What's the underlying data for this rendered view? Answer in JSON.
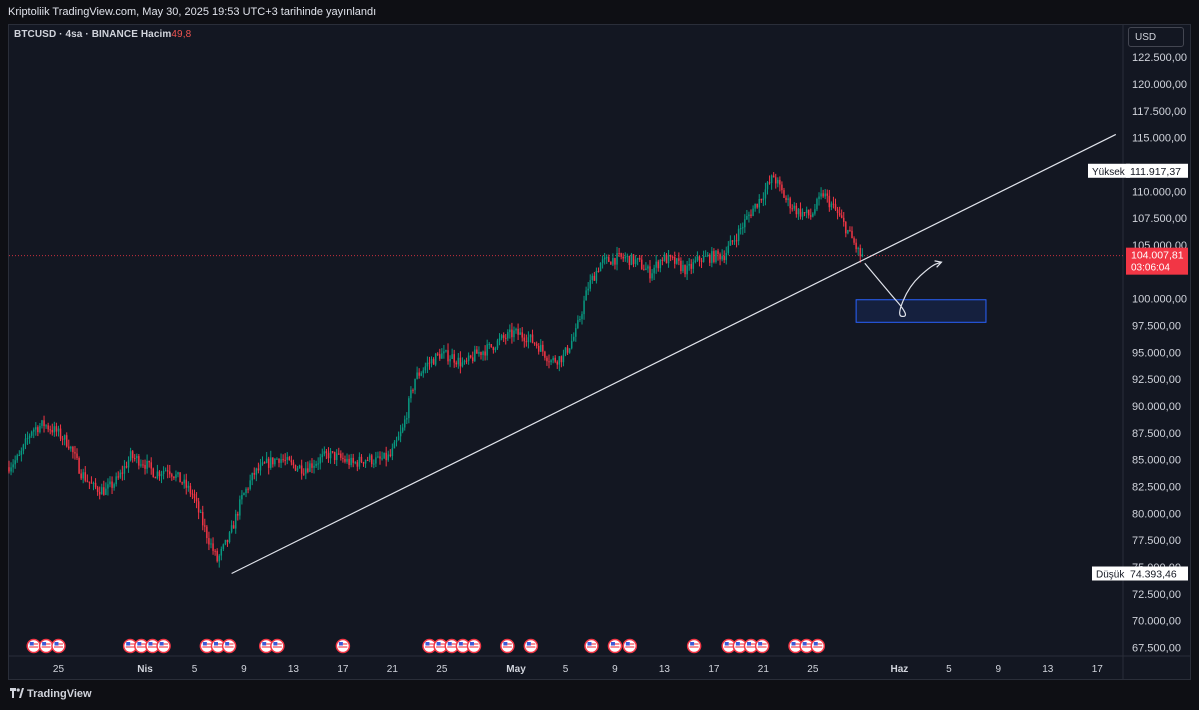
{
  "header": {
    "published_text": "Kriptoliik TradingView.com, May 30, 2025 19:53 UTC+3 tarihinde yayınlandı"
  },
  "legend": {
    "symbol": "BTCUSD",
    "sep1": "·",
    "interval": "4sa",
    "sep2": "·",
    "exchange": "BINANCE",
    "volume_label": "Hacim",
    "volume_value": "49,8"
  },
  "currency_button": "USD",
  "footer": {
    "brand": "TradingView"
  },
  "chart_data": {
    "type": "candlestick",
    "symbol": "BTCUSD",
    "interval": "4sa",
    "y_range": [
      66800,
      125500
    ],
    "y_ticks": [
      {
        "value": 122500,
        "label": "122.500,00"
      },
      {
        "value": 120000,
        "label": "120.000,00"
      },
      {
        "value": 117500,
        "label": "117.500,00"
      },
      {
        "value": 115000,
        "label": "115.000,00"
      },
      {
        "value": 110000,
        "label": "110.000,00"
      },
      {
        "value": 107500,
        "label": "107.500,00"
      },
      {
        "value": 105000,
        "label": "105.000,00"
      },
      {
        "value": 100000,
        "label": "100.000,00"
      },
      {
        "value": 97500,
        "label": "97.500,00"
      },
      {
        "value": 95000,
        "label": "95.000,00"
      },
      {
        "value": 92500,
        "label": "92.500,00"
      },
      {
        "value": 90000,
        "label": "90.000,00"
      },
      {
        "value": 87500,
        "label": "87.500,00"
      },
      {
        "value": 85000,
        "label": "85.000,00"
      },
      {
        "value": 82500,
        "label": "82.500,00"
      },
      {
        "value": 80000,
        "label": "80.000,00"
      },
      {
        "value": 77500,
        "label": "77.500,00"
      },
      {
        "value": 75000,
        "label": "75.000,00"
      },
      {
        "value": 72500,
        "label": "72.500,00"
      },
      {
        "value": 70000,
        "label": "70.000,00"
      },
      {
        "value": 67500,
        "label": "67.500,00"
      }
    ],
    "x_ticks": [
      {
        "day": 25,
        "label": "25"
      },
      {
        "day": 32,
        "label": "Nis",
        "bold": true
      },
      {
        "day": 36,
        "label": "5"
      },
      {
        "day": 40,
        "label": "9"
      },
      {
        "day": 44,
        "label": "13"
      },
      {
        "day": 48,
        "label": "17"
      },
      {
        "day": 52,
        "label": "21"
      },
      {
        "day": 56,
        "label": "25"
      },
      {
        "day": 62,
        "label": "May",
        "bold": true
      },
      {
        "day": 66,
        "label": "5"
      },
      {
        "day": 70,
        "label": "9"
      },
      {
        "day": 74,
        "label": "13"
      },
      {
        "day": 78,
        "label": "17"
      },
      {
        "day": 82,
        "label": "21"
      },
      {
        "day": 86,
        "label": "25"
      },
      {
        "day": 93,
        "label": "Haz",
        "bold": true
      },
      {
        "day": 97,
        "label": "5"
      },
      {
        "day": 101,
        "label": "9"
      },
      {
        "day": 105,
        "label": "13"
      },
      {
        "day": 109,
        "label": "17"
      }
    ],
    "price_path": [
      [
        21,
        84300
      ],
      [
        22,
        85200
      ],
      [
        23,
        87800
      ],
      [
        24,
        88300
      ],
      [
        25,
        87600
      ],
      [
        26,
        86500
      ],
      [
        27,
        83800
      ],
      [
        28,
        82400
      ],
      [
        29,
        82100
      ],
      [
        30,
        83200
      ],
      [
        31,
        85300
      ],
      [
        32,
        84800
      ],
      [
        33,
        83700
      ],
      [
        34,
        84200
      ],
      [
        35,
        83100
      ],
      [
        36,
        81800
      ],
      [
        37,
        78500
      ],
      [
        38,
        75600
      ],
      [
        39,
        77800
      ],
      [
        40,
        81400
      ],
      [
        41,
        83700
      ],
      [
        42,
        84600
      ],
      [
        43,
        85200
      ],
      [
        44,
        84500
      ],
      [
        45,
        84200
      ],
      [
        46,
        84800
      ],
      [
        47,
        85500
      ],
      [
        48,
        85100
      ],
      [
        49,
        84600
      ],
      [
        50,
        85100
      ],
      [
        51,
        84900
      ],
      [
        52,
        85300
      ],
      [
        53,
        87800
      ],
      [
        54,
        92600
      ],
      [
        55,
        93900
      ],
      [
        56,
        94800
      ],
      [
        57,
        94600
      ],
      [
        58,
        93800
      ],
      [
        59,
        94900
      ],
      [
        60,
        95400
      ],
      [
        61,
        96200
      ],
      [
        62,
        96800
      ],
      [
        63,
        96500
      ],
      [
        64,
        95600
      ],
      [
        65,
        94200
      ],
      [
        66,
        94600
      ],
      [
        67,
        96800
      ],
      [
        68,
        101100
      ],
      [
        69,
        103300
      ],
      [
        70,
        103700
      ],
      [
        71,
        103800
      ],
      [
        72,
        103400
      ],
      [
        73,
        102400
      ],
      [
        74,
        103800
      ],
      [
        75,
        103400
      ],
      [
        76,
        102600
      ],
      [
        77,
        103700
      ],
      [
        78,
        103900
      ],
      [
        79,
        104100
      ],
      [
        80,
        105900
      ],
      [
        81,
        107800
      ],
      [
        82,
        109500
      ],
      [
        83,
        111400
      ],
      [
        84,
        109200
      ],
      [
        85,
        108100
      ],
      [
        86,
        107700
      ],
      [
        87,
        109800
      ],
      [
        88,
        108200
      ],
      [
        89,
        106300
      ],
      [
        90,
        104000
      ]
    ],
    "trendline": {
      "start": [
        39,
        74393
      ],
      "end": [
        110.5,
        115300
      ]
    },
    "target_zone": {
      "day_start": 89.5,
      "day_end": 100,
      "price_low": 97800,
      "price_high": 99900
    },
    "projection_path": [
      [
        90.2,
        103300
      ],
      [
        92.3,
        100400
      ],
      [
        93.3,
        99100
      ],
      [
        93.6,
        98300
      ],
      [
        92.8,
        98400
      ],
      [
        93.8,
        101200
      ],
      [
        95.6,
        103100
      ],
      [
        96.4,
        103400
      ]
    ],
    "current_price": {
      "value": 104007.81,
      "label": "104.007,81",
      "countdown": "03:06:04",
      "color": "#f23645"
    },
    "high_marker": {
      "label": "Yüksek",
      "value": 111917.37,
      "value_label": "111.917,37"
    },
    "low_marker": {
      "label": "Düşük",
      "value": 74393.46,
      "value_label": "74.393,46"
    },
    "event_flags": [
      23,
      24,
      25,
      30.8,
      31.7,
      32.6,
      33.5,
      37,
      37.9,
      38.8,
      41.8,
      42.7,
      48,
      55,
      55.9,
      56.8,
      57.7,
      58.6,
      61.3,
      63.2,
      68.1,
      70,
      71.2,
      76.4,
      79.2,
      80.1,
      81,
      81.9,
      84.6,
      85.5,
      86.4
    ]
  }
}
